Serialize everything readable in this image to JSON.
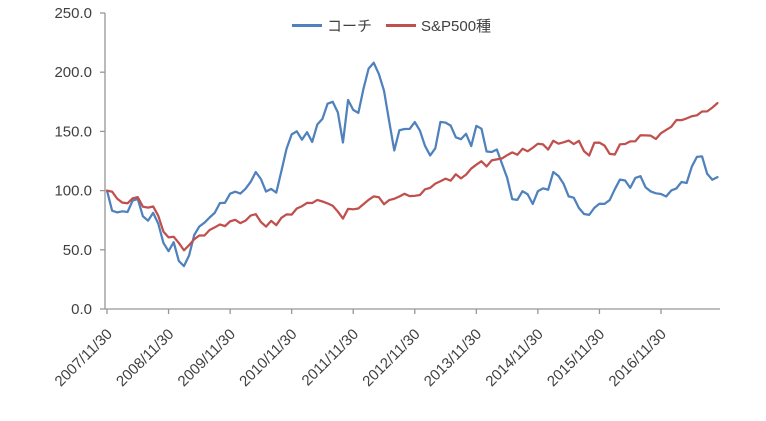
{
  "chart_data": {
    "type": "line",
    "title": "",
    "xlabel": "",
    "ylabel": "",
    "ylim": [
      0,
      250
    ],
    "y_tick_step": 50,
    "y_tick_labels": [
      "0.0",
      "50.0",
      "100.0",
      "150.0",
      "200.0",
      "250.0"
    ],
    "x_tick_labels": [
      "2007/11/30",
      "2008/11/30",
      "2009/11/30",
      "2010/11/30",
      "2011/11/30",
      "2012/11/30",
      "2013/11/30",
      "2014/11/30",
      "2015/11/30",
      "2016/11/30"
    ],
    "x_tick_every": 12,
    "grid": "off",
    "legend_position": "top-center",
    "axis_color": "#969696",
    "label_color": "#404040",
    "x_labels": [
      "2007/11/30",
      "2007/12/31",
      "2008/01/31",
      "2008/02/29",
      "2008/03/31",
      "2008/04/30",
      "2008/05/31",
      "2008/06/30",
      "2008/07/31",
      "2008/08/31",
      "2008/09/30",
      "2008/10/31",
      "2008/11/30",
      "2008/12/31",
      "2009/01/31",
      "2009/02/28",
      "2009/03/31",
      "2009/04/30",
      "2009/05/31",
      "2009/06/30",
      "2009/07/31",
      "2009/08/31",
      "2009/09/30",
      "2009/10/31",
      "2009/11/30",
      "2009/12/31",
      "2010/01/31",
      "2010/02/28",
      "2010/03/31",
      "2010/04/30",
      "2010/05/31",
      "2010/06/30",
      "2010/07/31",
      "2010/08/31",
      "2010/09/30",
      "2010/10/31",
      "2010/11/30",
      "2010/12/31",
      "2011/01/31",
      "2011/02/28",
      "2011/03/31",
      "2011/04/30",
      "2011/05/31",
      "2011/06/30",
      "2011/07/31",
      "2011/08/31",
      "2011/09/30",
      "2011/10/31",
      "2011/11/30",
      "2011/12/31",
      "2012/01/31",
      "2012/02/29",
      "2012/03/31",
      "2012/04/30",
      "2012/05/31",
      "2012/06/30",
      "2012/07/31",
      "2012/08/31",
      "2012/09/30",
      "2012/10/31",
      "2012/11/30",
      "2012/12/31",
      "2013/01/31",
      "2013/02/28",
      "2013/03/31",
      "2013/04/30",
      "2013/05/31",
      "2013/06/30",
      "2013/07/31",
      "2013/08/31",
      "2013/09/30",
      "2013/10/31",
      "2013/11/30",
      "2013/12/31",
      "2014/01/31",
      "2014/02/28",
      "2014/03/31",
      "2014/04/30",
      "2014/05/31",
      "2014/06/30",
      "2014/07/31",
      "2014/08/31",
      "2014/09/30",
      "2014/10/31",
      "2014/11/30",
      "2014/12/31",
      "2015/01/31",
      "2015/02/28",
      "2015/03/31",
      "2015/04/30",
      "2015/05/31",
      "2015/06/30",
      "2015/07/31",
      "2015/08/31",
      "2015/09/30",
      "2015/10/31",
      "2015/11/30",
      "2015/12/31",
      "2016/01/31",
      "2016/02/29",
      "2016/03/31",
      "2016/04/30",
      "2016/05/31",
      "2016/06/30",
      "2016/07/31",
      "2016/08/31",
      "2016/09/30",
      "2016/10/31",
      "2016/11/30",
      "2016/12/31",
      "2017/01/31",
      "2017/02/28",
      "2017/03/31",
      "2017/04/30",
      "2017/05/31",
      "2017/06/30",
      "2017/07/31",
      "2017/08/31",
      "2017/09/30",
      "2017/10/31"
    ],
    "series": [
      {
        "name": "コーチ",
        "color": "#4f81bd",
        "values": [
          100.0,
          83.0,
          81.6,
          82.5,
          81.9,
          91.6,
          92.9,
          78.3,
          74.6,
          81.2,
          72.0,
          55.8,
          48.8,
          56.4,
          40.6,
          36.2,
          45.2,
          62.4,
          69.7,
          72.9,
          77.3,
          81.2,
          89.4,
          89.7,
          97.4,
          99.1,
          97.5,
          101.5,
          107.3,
          115.7,
          109.8,
          99.2,
          101.4,
          98.3,
          116.6,
          135.3,
          147.5,
          150.1,
          143.0,
          149.3,
          141.1,
          155.8,
          160.6,
          173.4,
          175.0,
          166.1,
          140.6,
          176.5,
          168.2,
          165.6,
          186.0,
          203.0,
          208.0,
          198.4,
          184.4,
          158.7,
          133.9,
          151.0,
          152.0,
          152.1,
          157.9,
          150.7,
          137.7,
          129.7,
          135.7,
          158.0,
          157.4,
          154.9,
          145.0,
          143.4,
          148.0,
          137.6,
          154.7,
          152.3,
          133.0,
          132.6,
          134.7,
          122.7,
          110.9,
          92.8,
          92.2,
          99.5,
          96.9,
          88.7,
          99.5,
          101.9,
          100.7,
          115.7,
          112.4,
          105.8,
          95.1,
          94.0,
          85.3,
          80.2,
          79.5,
          85.4,
          88.9,
          88.8,
          92.0,
          101.2,
          109.3,
          108.5,
          102.3,
          110.7,
          112.2,
          102.7,
          99.3,
          97.7,
          97.1,
          95.0,
          100.1,
          101.8,
          107.3,
          106.4,
          120.2,
          128.5,
          128.9,
          114.2,
          109.2,
          111.4
        ]
      },
      {
        "name": "S&P500種",
        "color": "#c0504d",
        "values": [
          100.0,
          99.1,
          93.1,
          89.8,
          89.3,
          93.5,
          94.5,
          86.4,
          85.6,
          86.6,
          78.7,
          65.4,
          60.5,
          61.0,
          55.8,
          49.6,
          53.9,
          58.9,
          62.1,
          62.1,
          66.7,
          68.9,
          71.4,
          70.0,
          74.0,
          75.3,
          72.5,
          74.6,
          78.9,
          80.1,
          73.5,
          69.6,
          74.4,
          70.8,
          77.0,
          79.9,
          79.7,
          84.9,
          86.8,
          89.6,
          89.5,
          92.1,
          90.8,
          89.2,
          87.2,
          82.3,
          76.4,
          84.6,
          84.2,
          84.9,
          88.6,
          92.2,
          95.1,
          94.4,
          88.5,
          92.0,
          93.1,
          95.0,
          97.3,
          95.3,
          95.6,
          96.3,
          101.1,
          102.3,
          105.9,
          107.9,
          110.1,
          108.4,
          113.8,
          110.3,
          113.5,
          118.6,
          121.9,
          124.8,
          120.4,
          125.5,
          126.4,
          127.2,
          129.9,
          132.3,
          130.3,
          135.3,
          133.2,
          136.2,
          139.6,
          139.0,
          134.7,
          142.1,
          139.6,
          140.8,
          142.3,
          139.3,
          142.0,
          133.2,
          129.6,
          140.4,
          140.5,
          138.0,
          131.0,
          130.5,
          139.1,
          139.4,
          141.6,
          141.7,
          146.8,
          146.6,
          146.4,
          143.6,
          148.5,
          151.2,
          153.9,
          159.6,
          159.5,
          161.0,
          162.8,
          163.6,
          166.8,
          166.9,
          170.1,
          173.9
        ]
      }
    ]
  }
}
